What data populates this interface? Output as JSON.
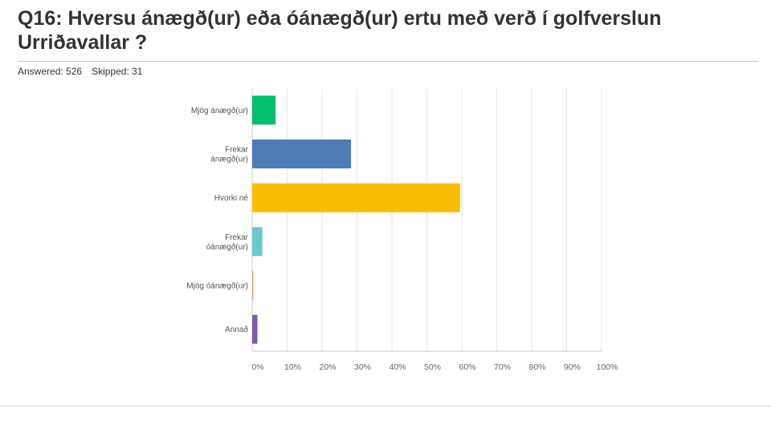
{
  "header": {
    "title": "Q16: Hversu ánægð(ur) eða óánægð(ur) ertu með verð í golfverslun Urriðavallar ?",
    "answered_label": "Answered: 526",
    "skipped_label": "Skipped: 31"
  },
  "chart_data": {
    "type": "bar",
    "orientation": "horizontal",
    "categories": [
      [
        "Mjög ánægð(ur)"
      ],
      [
        "Frekar",
        "ánægð(ur)"
      ],
      [
        "Hvorki né"
      ],
      [
        "Frekar",
        "óánægð(ur)"
      ],
      [
        "Mjög óánægð(ur)"
      ],
      [
        "Annað"
      ]
    ],
    "values": [
      6.7,
      28.3,
      59.5,
      2.9,
      0.2,
      1.5
    ],
    "colors": [
      "#00bf6f",
      "#507cb6",
      "#f9be00",
      "#6bc8cd",
      "#f6a876",
      "#7d5ba6"
    ],
    "xlim": [
      0,
      100
    ],
    "xticks": [
      "0%",
      "10%",
      "20%",
      "30%",
      "40%",
      "50%",
      "60%",
      "70%",
      "80%",
      "90%",
      "100%"
    ],
    "grid": true
  }
}
